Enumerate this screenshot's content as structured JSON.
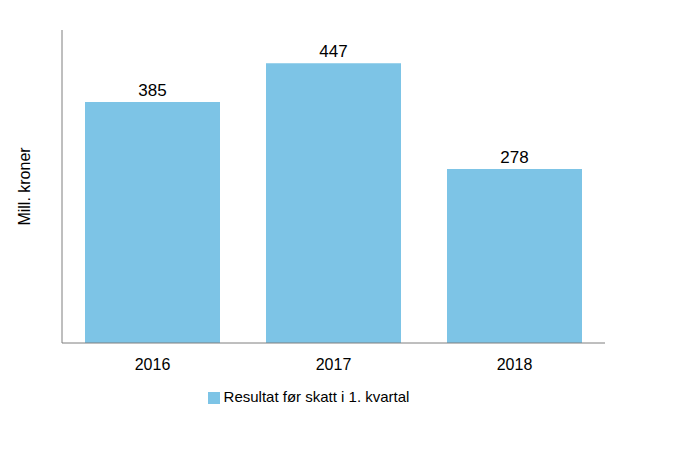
{
  "chart_data": {
    "type": "bar",
    "categories": [
      "2016",
      "2017",
      "2018"
    ],
    "series": [
      {
        "name": "Resultat før skatt i 1. kvartal",
        "color": "#7dc4e6",
        "values": [
          385,
          447,
          278
        ]
      }
    ],
    "y_label": "Mill. kroner",
    "ylim": [
      0,
      500
    ],
    "yticks": [],
    "tick_labels": "x",
    "data_labels": true,
    "legend": "bottom",
    "grid": false
  }
}
